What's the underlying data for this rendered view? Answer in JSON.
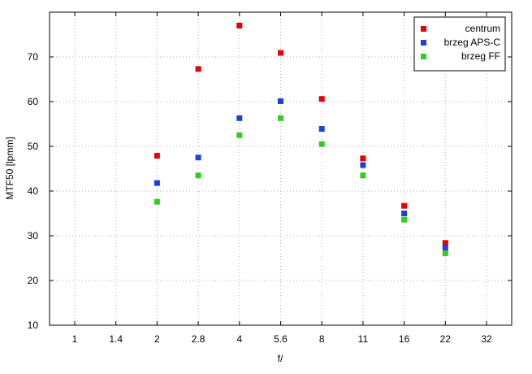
{
  "chart_data": {
    "type": "scatter",
    "title": "",
    "xlabel": "f/",
    "ylabel": "MTF50 [lpmm]",
    "x": [
      "1",
      "1.4",
      "2",
      "2.8",
      "4",
      "5.6",
      "8",
      "11",
      "16",
      "22",
      "32"
    ],
    "ylim": [
      10,
      80
    ],
    "yticks": [
      10,
      20,
      30,
      40,
      50,
      60,
      70
    ],
    "grid": true,
    "legend_position": "top-right",
    "series": [
      {
        "name": "centrum",
        "color": "#e60000",
        "points": [
          {
            "x": "2",
            "y": 47.9
          },
          {
            "x": "2.8",
            "y": 67.3
          },
          {
            "x": "4",
            "y": 77.0
          },
          {
            "x": "5.6",
            "y": 70.9
          },
          {
            "x": "8",
            "y": 60.6
          },
          {
            "x": "11",
            "y": 47.3
          },
          {
            "x": "16",
            "y": 36.7
          },
          {
            "x": "22",
            "y": 28.4
          }
        ]
      },
      {
        "name": "brzeg APS-C",
        "color": "#1f3fdc",
        "points": [
          {
            "x": "2",
            "y": 41.8
          },
          {
            "x": "2.8",
            "y": 47.5
          },
          {
            "x": "4",
            "y": 56.3
          },
          {
            "x": "5.6",
            "y": 60.1
          },
          {
            "x": "8",
            "y": 53.9
          },
          {
            "x": "11",
            "y": 45.8
          },
          {
            "x": "16",
            "y": 35.0
          },
          {
            "x": "22",
            "y": 27.3
          }
        ]
      },
      {
        "name": "brzeg FF",
        "color": "#33cc22",
        "points": [
          {
            "x": "2",
            "y": 37.6
          },
          {
            "x": "2.8",
            "y": 43.5
          },
          {
            "x": "4",
            "y": 52.5
          },
          {
            "x": "5.6",
            "y": 56.3
          },
          {
            "x": "8",
            "y": 50.5
          },
          {
            "x": "11",
            "y": 43.5
          },
          {
            "x": "16",
            "y": 33.6
          },
          {
            "x": "22",
            "y": 26.1
          }
        ]
      }
    ]
  }
}
